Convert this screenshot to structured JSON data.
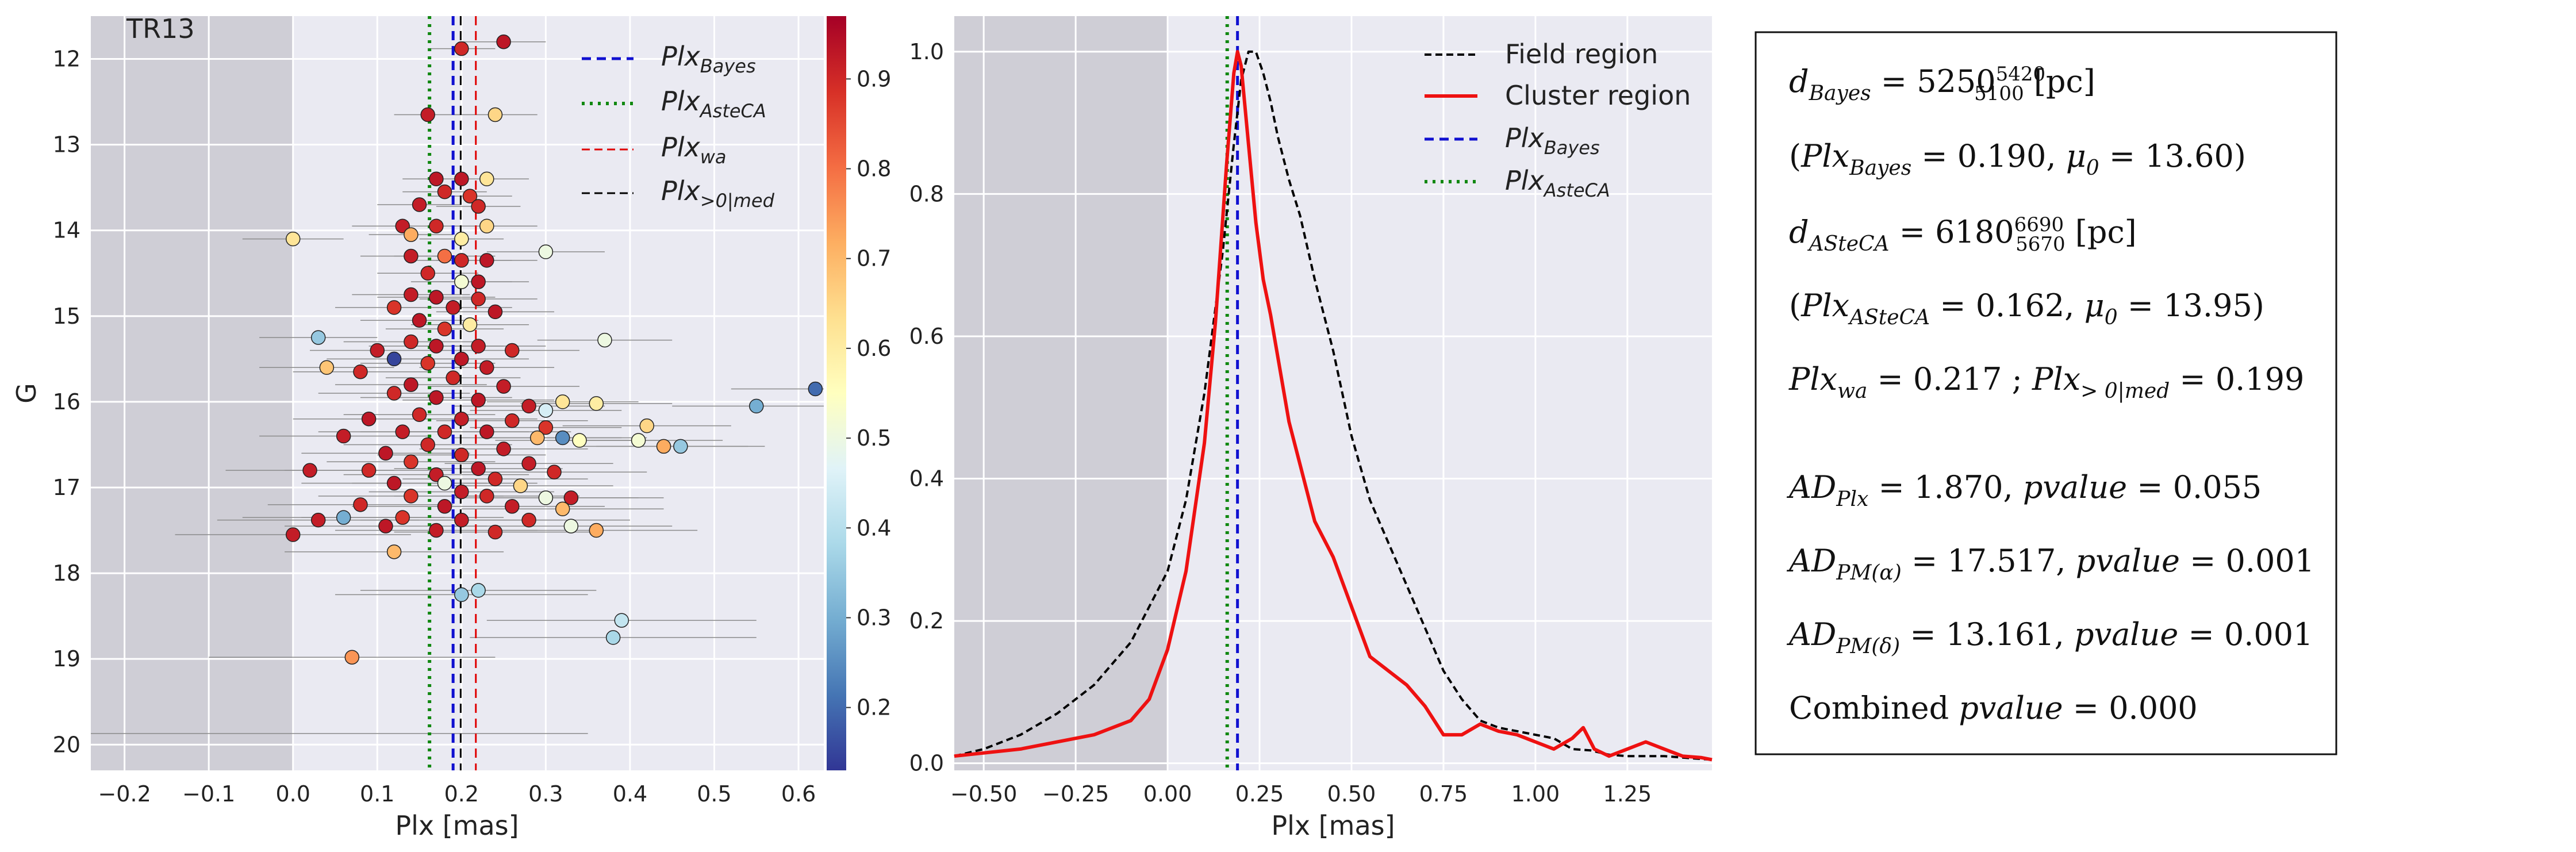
{
  "chart_data": [
    {
      "type": "scatter",
      "annotation": "TR13",
      "xlabel": "Plx [mas]",
      "ylabel": "G",
      "xlim": [
        -0.24,
        0.63
      ],
      "ylim": [
        20.3,
        11.5
      ],
      "x_ticks": [
        "-0.2",
        "-0.1",
        "0.0",
        "0.1",
        "0.2",
        "0.3",
        "0.4",
        "0.5",
        "0.6"
      ],
      "y_ticks": [
        "12",
        "13",
        "14",
        "15",
        "16",
        "17",
        "18",
        "19",
        "20"
      ],
      "shaded_region": [
        -0.24,
        0.0
      ],
      "colorbar": {
        "min": 0.13,
        "max": 0.97,
        "ticks": [
          "0.2",
          "0.3",
          "0.4",
          "0.5",
          "0.6",
          "0.7",
          "0.8",
          "0.9"
        ]
      },
      "vlines": [
        {
          "name": "Plx_Bayes",
          "x": 0.19,
          "color": "#1010d0",
          "style": "dashed"
        },
        {
          "name": "Plx_AsteCA",
          "x": 0.162,
          "color": "#118811",
          "style": "dotted"
        },
        {
          "name": "Plx_wa",
          "x": 0.217,
          "color": "#e00000",
          "style": "dashed"
        },
        {
          "name": "Plx_>0|med",
          "x": 0.199,
          "color": "#000000",
          "style": "dashed"
        }
      ],
      "legend": [
        "Plx",
        "Bayes",
        "Plx",
        "AsteCA",
        "Plx",
        "wa",
        "Plx",
        ">0|med"
      ],
      "points": [
        {
          "x": 0.25,
          "y": 11.8,
          "e": 0.05,
          "p": 0.93
        },
        {
          "x": 0.2,
          "y": 11.88,
          "e": 0.04,
          "p": 0.9
        },
        {
          "x": 0.16,
          "y": 12.65,
          "e": 0.04,
          "p": 0.92
        },
        {
          "x": 0.24,
          "y": 12.65,
          "e": 0.05,
          "p": 0.65
        },
        {
          "x": 0.17,
          "y": 13.4,
          "e": 0.04,
          "p": 0.93
        },
        {
          "x": 0.2,
          "y": 13.4,
          "e": 0.04,
          "p": 0.93
        },
        {
          "x": 0.23,
          "y": 13.4,
          "e": 0.05,
          "p": 0.62
        },
        {
          "x": 0.18,
          "y": 13.55,
          "e": 0.05,
          "p": 0.9
        },
        {
          "x": 0.21,
          "y": 13.6,
          "e": 0.05,
          "p": 0.88
        },
        {
          "x": 0.15,
          "y": 13.7,
          "e": 0.05,
          "p": 0.92
        },
        {
          "x": 0.22,
          "y": 13.72,
          "e": 0.05,
          "p": 0.9
        },
        {
          "x": 0.13,
          "y": 13.95,
          "e": 0.06,
          "p": 0.92
        },
        {
          "x": 0.17,
          "y": 13.95,
          "e": 0.05,
          "p": 0.9
        },
        {
          "x": 0.23,
          "y": 13.95,
          "e": 0.06,
          "p": 0.65
        },
        {
          "x": 0.14,
          "y": 14.05,
          "e": 0.05,
          "p": 0.72
        },
        {
          "x": 0.2,
          "y": 14.1,
          "e": 0.05,
          "p": 0.6
        },
        {
          "x": 0.0,
          "y": 14.1,
          "e": 0.06,
          "p": 0.62
        },
        {
          "x": 0.3,
          "y": 14.25,
          "e": 0.07,
          "p": 0.5
        },
        {
          "x": 0.14,
          "y": 14.3,
          "e": 0.06,
          "p": 0.92
        },
        {
          "x": 0.18,
          "y": 14.3,
          "e": 0.06,
          "p": 0.8
        },
        {
          "x": 0.2,
          "y": 14.35,
          "e": 0.06,
          "p": 0.9
        },
        {
          "x": 0.23,
          "y": 14.35,
          "e": 0.06,
          "p": 0.93
        },
        {
          "x": 0.16,
          "y": 14.5,
          "e": 0.06,
          "p": 0.9
        },
        {
          "x": 0.2,
          "y": 14.6,
          "e": 0.06,
          "p": 0.52
        },
        {
          "x": 0.22,
          "y": 14.6,
          "e": 0.06,
          "p": 0.93
        },
        {
          "x": 0.14,
          "y": 14.75,
          "e": 0.07,
          "p": 0.92
        },
        {
          "x": 0.17,
          "y": 14.78,
          "e": 0.07,
          "p": 0.93
        },
        {
          "x": 0.22,
          "y": 14.8,
          "e": 0.07,
          "p": 0.9
        },
        {
          "x": 0.12,
          "y": 14.9,
          "e": 0.07,
          "p": 0.88
        },
        {
          "x": 0.19,
          "y": 14.9,
          "e": 0.07,
          "p": 0.92
        },
        {
          "x": 0.24,
          "y": 14.95,
          "e": 0.07,
          "p": 0.93
        },
        {
          "x": 0.15,
          "y": 15.05,
          "e": 0.07,
          "p": 0.93
        },
        {
          "x": 0.21,
          "y": 15.1,
          "e": 0.07,
          "p": 0.6
        },
        {
          "x": 0.18,
          "y": 15.15,
          "e": 0.07,
          "p": 0.88
        },
        {
          "x": 0.03,
          "y": 15.25,
          "e": 0.07,
          "p": 0.35
        },
        {
          "x": 0.37,
          "y": 15.28,
          "e": 0.08,
          "p": 0.5
        },
        {
          "x": 0.14,
          "y": 15.3,
          "e": 0.08,
          "p": 0.9
        },
        {
          "x": 0.17,
          "y": 15.35,
          "e": 0.08,
          "p": 0.93
        },
        {
          "x": 0.22,
          "y": 15.35,
          "e": 0.08,
          "p": 0.92
        },
        {
          "x": 0.1,
          "y": 15.4,
          "e": 0.08,
          "p": 0.92
        },
        {
          "x": 0.26,
          "y": 15.4,
          "e": 0.08,
          "p": 0.9
        },
        {
          "x": 0.12,
          "y": 15.5,
          "e": 0.08,
          "p": 0.15
        },
        {
          "x": 0.2,
          "y": 15.5,
          "e": 0.08,
          "p": 0.93
        },
        {
          "x": 0.16,
          "y": 15.55,
          "e": 0.08,
          "p": 0.88
        },
        {
          "x": 0.04,
          "y": 15.6,
          "e": 0.08,
          "p": 0.68
        },
        {
          "x": 0.08,
          "y": 15.65,
          "e": 0.08,
          "p": 0.9
        },
        {
          "x": 0.23,
          "y": 15.6,
          "e": 0.08,
          "p": 0.92
        },
        {
          "x": 0.19,
          "y": 15.72,
          "e": 0.08,
          "p": 0.9
        },
        {
          "x": 0.14,
          "y": 15.8,
          "e": 0.09,
          "p": 0.93
        },
        {
          "x": 0.25,
          "y": 15.82,
          "e": 0.09,
          "p": 0.92
        },
        {
          "x": 0.62,
          "y": 15.85,
          "e": 0.1,
          "p": 0.2
        },
        {
          "x": 0.12,
          "y": 15.9,
          "e": 0.09,
          "p": 0.9
        },
        {
          "x": 0.17,
          "y": 15.95,
          "e": 0.09,
          "p": 0.93
        },
        {
          "x": 0.22,
          "y": 15.98,
          "e": 0.09,
          "p": 0.93
        },
        {
          "x": 0.32,
          "y": 16.0,
          "e": 0.09,
          "p": 0.62
        },
        {
          "x": 0.36,
          "y": 16.02,
          "e": 0.09,
          "p": 0.6
        },
        {
          "x": 0.55,
          "y": 16.05,
          "e": 0.1,
          "p": 0.3
        },
        {
          "x": 0.28,
          "y": 16.05,
          "e": 0.09,
          "p": 0.92
        },
        {
          "x": 0.3,
          "y": 16.1,
          "e": 0.09,
          "p": 0.45
        },
        {
          "x": 0.15,
          "y": 16.15,
          "e": 0.09,
          "p": 0.9
        },
        {
          "x": 0.2,
          "y": 16.2,
          "e": 0.09,
          "p": 0.92
        },
        {
          "x": 0.09,
          "y": 16.2,
          "e": 0.09,
          "p": 0.93
        },
        {
          "x": 0.26,
          "y": 16.22,
          "e": 0.09,
          "p": 0.9
        },
        {
          "x": 0.42,
          "y": 16.28,
          "e": 0.1,
          "p": 0.65
        },
        {
          "x": 0.3,
          "y": 16.3,
          "e": 0.09,
          "p": 0.88
        },
        {
          "x": 0.13,
          "y": 16.35,
          "e": 0.1,
          "p": 0.92
        },
        {
          "x": 0.18,
          "y": 16.35,
          "e": 0.1,
          "p": 0.9
        },
        {
          "x": 0.23,
          "y": 16.35,
          "e": 0.1,
          "p": 0.93
        },
        {
          "x": 0.06,
          "y": 16.4,
          "e": 0.1,
          "p": 0.92
        },
        {
          "x": 0.29,
          "y": 16.42,
          "e": 0.1,
          "p": 0.7
        },
        {
          "x": 0.32,
          "y": 16.42,
          "e": 0.1,
          "p": 0.25
        },
        {
          "x": 0.34,
          "y": 16.45,
          "e": 0.1,
          "p": 0.55
        },
        {
          "x": 0.41,
          "y": 16.45,
          "e": 0.1,
          "p": 0.52
        },
        {
          "x": 0.44,
          "y": 16.52,
          "e": 0.1,
          "p": 0.72
        },
        {
          "x": 0.46,
          "y": 16.52,
          "e": 0.1,
          "p": 0.35
        },
        {
          "x": 0.16,
          "y": 16.5,
          "e": 0.1,
          "p": 0.9
        },
        {
          "x": 0.25,
          "y": 16.55,
          "e": 0.1,
          "p": 0.92
        },
        {
          "x": 0.11,
          "y": 16.6,
          "e": 0.1,
          "p": 0.93
        },
        {
          "x": 0.2,
          "y": 16.62,
          "e": 0.1,
          "p": 0.9
        },
        {
          "x": 0.14,
          "y": 16.7,
          "e": 0.1,
          "p": 0.88
        },
        {
          "x": 0.28,
          "y": 16.72,
          "e": 0.1,
          "p": 0.92
        },
        {
          "x": 0.22,
          "y": 16.78,
          "e": 0.1,
          "p": 0.93
        },
        {
          "x": 0.02,
          "y": 16.8,
          "e": 0.1,
          "p": 0.92
        },
        {
          "x": 0.09,
          "y": 16.8,
          "e": 0.1,
          "p": 0.9
        },
        {
          "x": 0.31,
          "y": 16.82,
          "e": 0.11,
          "p": 0.9
        },
        {
          "x": 0.17,
          "y": 16.85,
          "e": 0.11,
          "p": 0.92
        },
        {
          "x": 0.24,
          "y": 16.9,
          "e": 0.11,
          "p": 0.9
        },
        {
          "x": 0.12,
          "y": 16.95,
          "e": 0.11,
          "p": 0.93
        },
        {
          "x": 0.18,
          "y": 16.95,
          "e": 0.11,
          "p": 0.5
        },
        {
          "x": 0.27,
          "y": 16.98,
          "e": 0.11,
          "p": 0.65
        },
        {
          "x": 0.2,
          "y": 17.05,
          "e": 0.11,
          "p": 0.92
        },
        {
          "x": 0.14,
          "y": 17.1,
          "e": 0.11,
          "p": 0.88
        },
        {
          "x": 0.23,
          "y": 17.1,
          "e": 0.11,
          "p": 0.9
        },
        {
          "x": 0.3,
          "y": 17.12,
          "e": 0.11,
          "p": 0.5
        },
        {
          "x": 0.33,
          "y": 17.12,
          "e": 0.11,
          "p": 0.92
        },
        {
          "x": 0.08,
          "y": 17.2,
          "e": 0.11,
          "p": 0.9
        },
        {
          "x": 0.18,
          "y": 17.22,
          "e": 0.11,
          "p": 0.93
        },
        {
          "x": 0.26,
          "y": 17.22,
          "e": 0.11,
          "p": 0.92
        },
        {
          "x": 0.32,
          "y": 17.25,
          "e": 0.12,
          "p": 0.7
        },
        {
          "x": 0.06,
          "y": 17.35,
          "e": 0.12,
          "p": 0.3
        },
        {
          "x": 0.03,
          "y": 17.38,
          "e": 0.12,
          "p": 0.92
        },
        {
          "x": 0.13,
          "y": 17.35,
          "e": 0.12,
          "p": 0.88
        },
        {
          "x": 0.2,
          "y": 17.38,
          "e": 0.12,
          "p": 0.92
        },
        {
          "x": 0.28,
          "y": 17.38,
          "e": 0.12,
          "p": 0.9
        },
        {
          "x": 0.33,
          "y": 17.45,
          "e": 0.12,
          "p": 0.5
        },
        {
          "x": 0.11,
          "y": 17.45,
          "e": 0.12,
          "p": 0.93
        },
        {
          "x": 0.36,
          "y": 17.5,
          "e": 0.12,
          "p": 0.72
        },
        {
          "x": 0.0,
          "y": 17.55,
          "e": 0.14,
          "p": 0.92
        },
        {
          "x": 0.17,
          "y": 17.5,
          "e": 0.12,
          "p": 0.92
        },
        {
          "x": 0.24,
          "y": 17.52,
          "e": 0.12,
          "p": 0.9
        },
        {
          "x": 0.12,
          "y": 17.75,
          "e": 0.13,
          "p": 0.7
        },
        {
          "x": 0.2,
          "y": 18.25,
          "e": 0.15,
          "p": 0.35
        },
        {
          "x": 0.22,
          "y": 18.2,
          "e": 0.14,
          "p": 0.38
        },
        {
          "x": 0.39,
          "y": 18.55,
          "e": 0.16,
          "p": 0.42
        },
        {
          "x": 0.38,
          "y": 18.75,
          "e": 0.17,
          "p": 0.38
        },
        {
          "x": 0.07,
          "y": 18.98,
          "e": 0.17,
          "p": 0.75
        }
      ]
    },
    {
      "type": "line",
      "xlabel": "Plx [mas]",
      "ylabel": "",
      "xlim": [
        -0.58,
        1.48
      ],
      "ylim": [
        -0.01,
        1.05
      ],
      "x_ticks": [
        "-0.50",
        "-0.25",
        "0.00",
        "0.25",
        "0.50",
        "0.75",
        "1.00",
        "1.25"
      ],
      "y_ticks": [
        "0.0",
        "0.2",
        "0.4",
        "0.6",
        "0.8",
        "1.0"
      ],
      "shaded_region": [
        -0.58,
        0.0
      ],
      "vlines": [
        {
          "name": "Plx_Bayes",
          "x": 0.19,
          "color": "#1010d0",
          "style": "dashed"
        },
        {
          "name": "Plx_AsteCA",
          "x": 0.162,
          "color": "#118811",
          "style": "dotted"
        }
      ],
      "legend": [
        "Field region",
        "Cluster region",
        "Plx",
        "Bayes",
        "Plx",
        "AsteCA"
      ],
      "series": [
        {
          "name": "Field region",
          "color": "#000000",
          "style": "dashed",
          "x": [
            -0.58,
            -0.5,
            -0.4,
            -0.3,
            -0.2,
            -0.1,
            0.0,
            0.05,
            0.1,
            0.15,
            0.18,
            0.2,
            0.22,
            0.24,
            0.26,
            0.28,
            0.3,
            0.33,
            0.36,
            0.4,
            0.45,
            0.5,
            0.55,
            0.6,
            0.65,
            0.7,
            0.75,
            0.8,
            0.85,
            0.9,
            0.95,
            1.0,
            1.05,
            1.1,
            1.15,
            1.2,
            1.25,
            1.3,
            1.35,
            1.4,
            1.45,
            1.48
          ],
          "y": [
            0.01,
            0.02,
            0.04,
            0.07,
            0.11,
            0.17,
            0.27,
            0.37,
            0.52,
            0.72,
            0.87,
            0.96,
            1.0,
            1.0,
            0.97,
            0.93,
            0.88,
            0.82,
            0.77,
            0.68,
            0.58,
            0.46,
            0.37,
            0.31,
            0.25,
            0.19,
            0.13,
            0.09,
            0.06,
            0.05,
            0.045,
            0.04,
            0.035,
            0.02,
            0.018,
            0.012,
            0.01,
            0.01,
            0.01,
            0.008,
            0.006,
            0.005
          ]
        },
        {
          "name": "Cluster region",
          "color": "#ee1111",
          "style": "solid",
          "x": [
            -0.58,
            -0.4,
            -0.2,
            -0.1,
            -0.05,
            0.0,
            0.05,
            0.1,
            0.13,
            0.16,
            0.18,
            0.19,
            0.2,
            0.22,
            0.24,
            0.26,
            0.28,
            0.3,
            0.33,
            0.36,
            0.4,
            0.45,
            0.5,
            0.55,
            0.6,
            0.65,
            0.7,
            0.75,
            0.8,
            0.85,
            0.9,
            0.95,
            1.0,
            1.05,
            1.1,
            1.13,
            1.16,
            1.2,
            1.25,
            1.3,
            1.35,
            1.4,
            1.45,
            1.48
          ],
          "y": [
            0.01,
            0.02,
            0.04,
            0.06,
            0.09,
            0.16,
            0.27,
            0.45,
            0.62,
            0.84,
            0.97,
            1.0,
            0.98,
            0.87,
            0.76,
            0.68,
            0.63,
            0.57,
            0.48,
            0.42,
            0.34,
            0.29,
            0.22,
            0.15,
            0.13,
            0.11,
            0.08,
            0.04,
            0.04,
            0.055,
            0.045,
            0.04,
            0.03,
            0.02,
            0.035,
            0.05,
            0.02,
            0.01,
            0.02,
            0.03,
            0.02,
            0.01,
            0.008,
            0.005
          ]
        }
      ]
    }
  ],
  "textbox": {
    "line1": {
      "label": "d",
      "sub": "Bayes",
      "value": " = 5250",
      "sup": "5420",
      "lower": "5100",
      "unit": " [pc]"
    },
    "line2": {
      "open": "(",
      "a": "Plx",
      "asub": "Bayes",
      "aval": " = 0.190, ",
      "b": "μ",
      "bsub": "0",
      "bval": " = 13.60)"
    },
    "line3": {
      "label": "d",
      "sub": "ASteCA",
      "value": " = 6180",
      "sup": "6690",
      "lower": "5670",
      "unit": " [pc]"
    },
    "line4": {
      "open": "(",
      "a": "Plx",
      "asub": "ASteCA",
      "aval": " = 0.162, ",
      "b": "μ",
      "bsub": "0",
      "bval": " = 13.95)"
    },
    "line5": {
      "a": "Plx",
      "asub": "wa",
      "aval": " = 0.217 ; ",
      "b": "Plx",
      "bsub": "> 0|med",
      "bval": " = 0.199"
    },
    "line6": {
      "a": "AD",
      "asub": "Plx",
      "aval": " = 1.870, ",
      "b": "pvalue",
      "bval": " = 0.055"
    },
    "line7": {
      "a": "AD",
      "asub": "PM(α)",
      "aval": " = 17.517, ",
      "b": "pvalue",
      "bval": " = 0.001"
    },
    "line8": {
      "a": "AD",
      "asub": "PM(δ)",
      "aval": " = 13.161, ",
      "b": "pvalue",
      "bval": " = 0.001"
    },
    "line9": {
      "pre": "Combined ",
      "b": "pvalue",
      "bval": " = 0.000"
    }
  }
}
